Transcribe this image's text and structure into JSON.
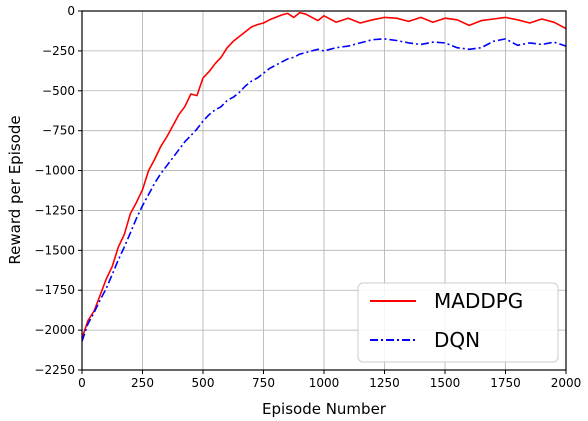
{
  "chart_data": {
    "type": "line",
    "title": "",
    "xlabel": "Episode Number",
    "ylabel": "Reward per Episode",
    "xlim": [
      0,
      2000
    ],
    "ylim": [
      -2250,
      0
    ],
    "xticks": [
      0,
      250,
      500,
      750,
      1000,
      1250,
      1500,
      1750,
      2000
    ],
    "xtick_labels": [
      "0",
      "250",
      "500",
      "750",
      "1000",
      "1250",
      "1500",
      "1750",
      "2000"
    ],
    "yticks": [
      0,
      -250,
      -500,
      -750,
      -1000,
      -1250,
      -1500,
      -1750,
      -2000,
      -2250
    ],
    "ytick_labels": [
      "0",
      "−250",
      "−500",
      "−750",
      "−1000",
      "−1250",
      "−1500",
      "−1750",
      "−2000",
      "−2250"
    ],
    "grid": true,
    "legend_position": "lower-right",
    "series": [
      {
        "name": "MADDPG",
        "color": "#ff0000",
        "style": "solid",
        "x": [
          0,
          25,
          50,
          75,
          100,
          125,
          150,
          175,
          200,
          225,
          250,
          275,
          300,
          325,
          350,
          375,
          400,
          425,
          450,
          475,
          500,
          525,
          550,
          575,
          600,
          625,
          650,
          675,
          700,
          725,
          750,
          775,
          800,
          825,
          850,
          875,
          900,
          925,
          950,
          975,
          1000,
          1050,
          1100,
          1150,
          1200,
          1250,
          1300,
          1350,
          1400,
          1450,
          1500,
          1550,
          1600,
          1650,
          1700,
          1750,
          1800,
          1850,
          1900,
          1950,
          2000
        ],
        "y": [
          -2050,
          -1940,
          -1880,
          -1780,
          -1680,
          -1600,
          -1480,
          -1400,
          -1270,
          -1200,
          -1120,
          -1000,
          -930,
          -850,
          -790,
          -720,
          -650,
          -600,
          -520,
          -530,
          -420,
          -380,
          -330,
          -290,
          -230,
          -190,
          -160,
          -130,
          -100,
          -85,
          -75,
          -55,
          -40,
          -25,
          -15,
          -40,
          -10,
          -20,
          -40,
          -60,
          -30,
          -70,
          -45,
          -75,
          -55,
          -40,
          -45,
          -65,
          -40,
          -70,
          -45,
          -55,
          -90,
          -60,
          -50,
          -40,
          -55,
          -75,
          -50,
          -70,
          -110
        ]
      },
      {
        "name": "DQN",
        "color": "#0000ff",
        "style": "dashdot",
        "x": [
          0,
          25,
          50,
          75,
          100,
          125,
          150,
          175,
          200,
          225,
          250,
          275,
          300,
          325,
          350,
          375,
          400,
          425,
          450,
          475,
          500,
          525,
          550,
          575,
          600,
          625,
          650,
          675,
          700,
          725,
          750,
          775,
          800,
          825,
          850,
          875,
          900,
          925,
          950,
          975,
          1000,
          1050,
          1100,
          1150,
          1200,
          1250,
          1300,
          1350,
          1400,
          1450,
          1500,
          1550,
          1600,
          1650,
          1700,
          1750,
          1800,
          1850,
          1900,
          1950,
          2000
        ],
        "y": [
          -2070,
          -1960,
          -1890,
          -1810,
          -1740,
          -1650,
          -1560,
          -1480,
          -1390,
          -1300,
          -1220,
          -1150,
          -1080,
          -1020,
          -970,
          -920,
          -870,
          -820,
          -780,
          -740,
          -690,
          -650,
          -620,
          -600,
          -560,
          -540,
          -510,
          -470,
          -440,
          -420,
          -390,
          -360,
          -340,
          -320,
          -300,
          -290,
          -270,
          -260,
          -250,
          -240,
          -250,
          -230,
          -220,
          -200,
          -180,
          -175,
          -185,
          -200,
          -210,
          -195,
          -200,
          -230,
          -240,
          -230,
          -190,
          -175,
          -215,
          -200,
          -210,
          -195,
          -220
        ]
      }
    ]
  }
}
